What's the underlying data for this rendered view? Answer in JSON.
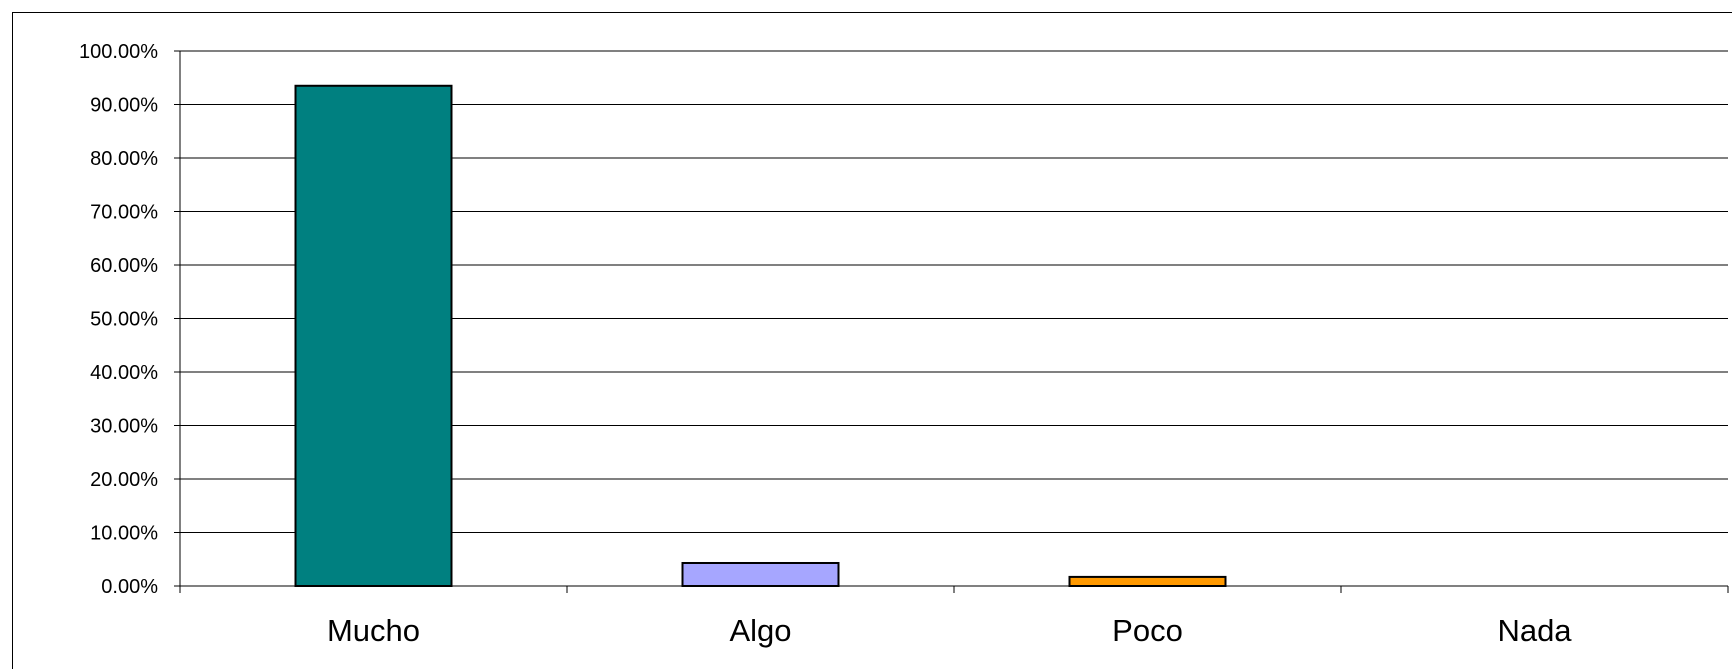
{
  "chart_data": {
    "type": "bar",
    "title": "",
    "xlabel": "",
    "ylabel": "",
    "categories": [
      "Mucho",
      "Algo",
      "Poco",
      "Nada"
    ],
    "values": [
      93.5,
      4.3,
      1.7,
      0.0
    ],
    "colors": [
      "#008080",
      "#A6A6FF",
      "#FF9900",
      "#CCCCCC"
    ],
    "ylim": [
      0,
      100
    ],
    "yticks": [
      0,
      10,
      20,
      30,
      40,
      50,
      60,
      70,
      80,
      90,
      100
    ],
    "ytick_labels": [
      "0.00%",
      "10.00%",
      "20.00%",
      "30.00%",
      "40.00%",
      "50.00%",
      "60.00%",
      "70.00%",
      "80.00%",
      "90.00%",
      "100.00%"
    ],
    "grid": true,
    "legend": "none"
  }
}
